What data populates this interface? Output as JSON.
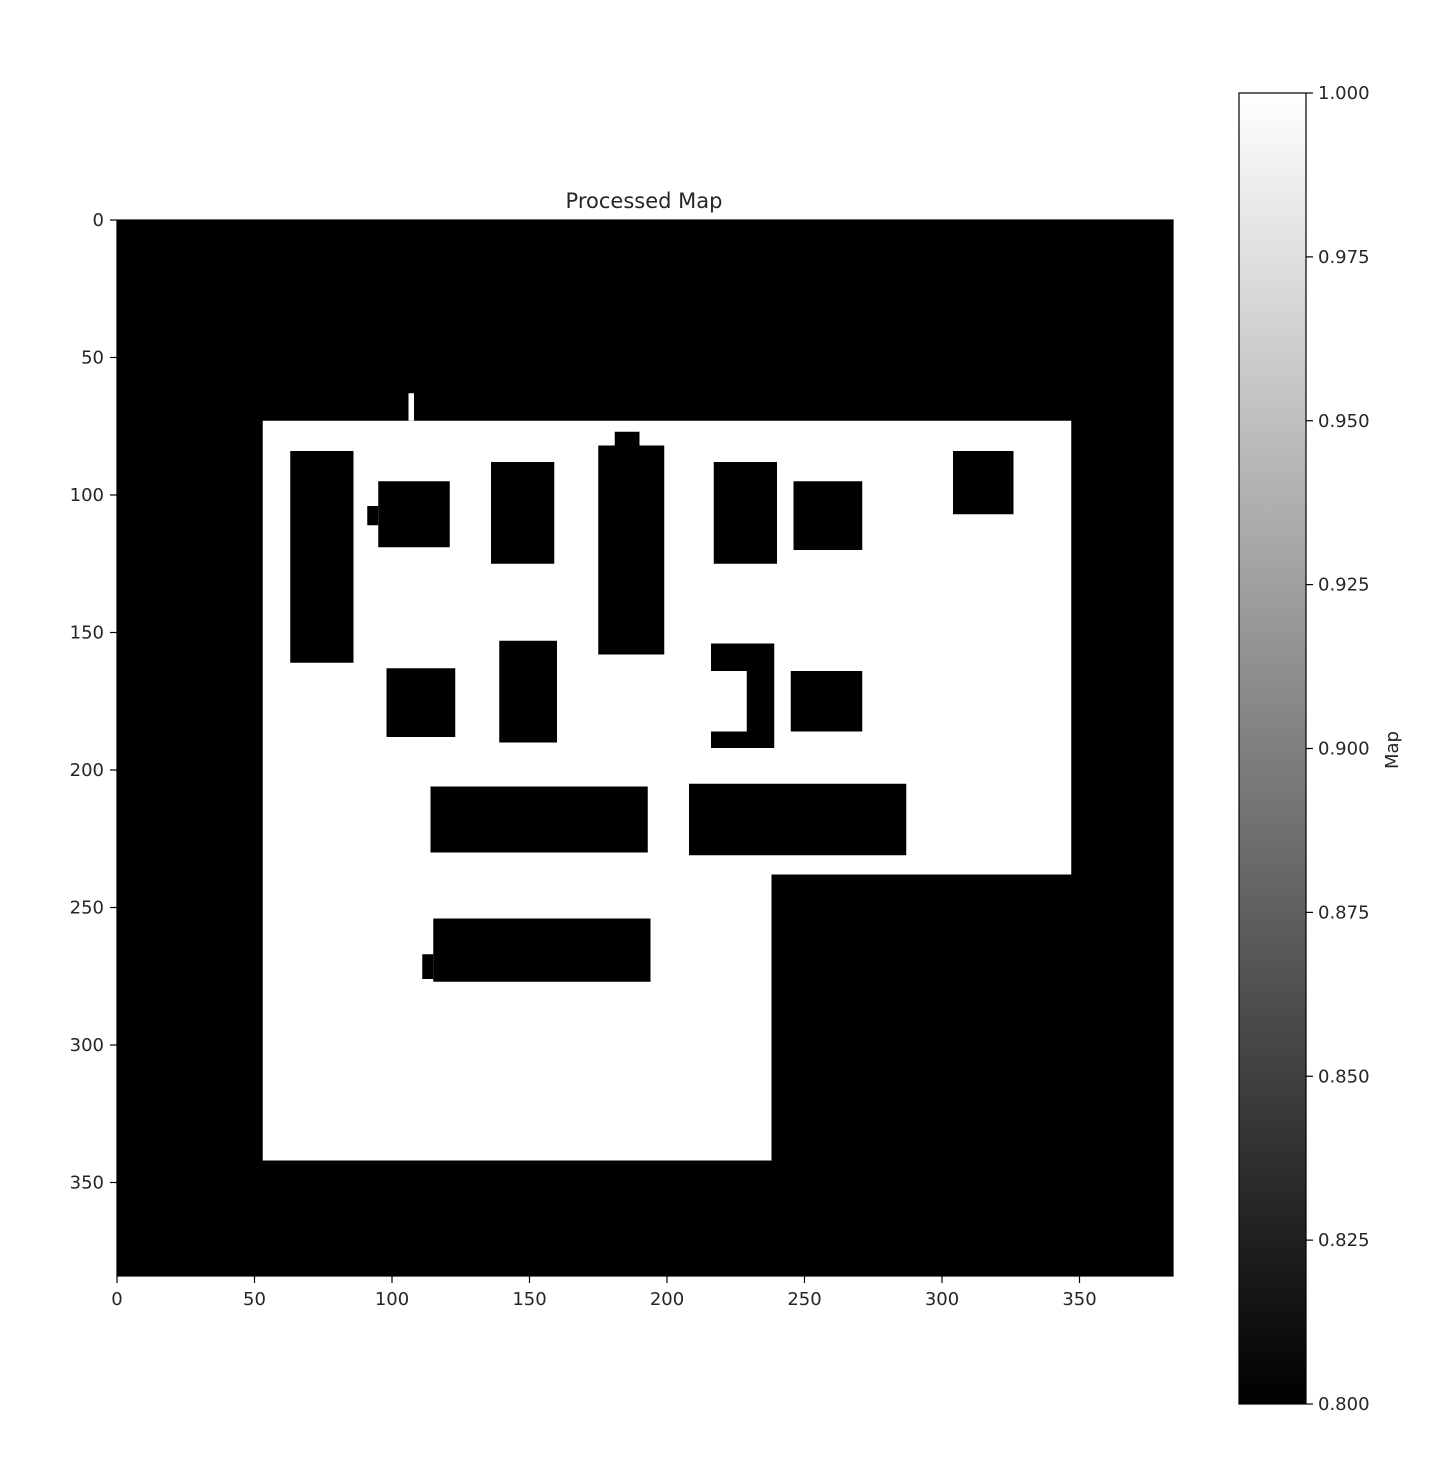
{
  "chart_data": {
    "type": "heatmap",
    "title": "Processed Map",
    "xlabel": "",
    "ylabel": "",
    "xlim": [
      0,
      384
    ],
    "ylim": [
      384,
      0
    ],
    "x_ticks": [
      0,
      50,
      100,
      150,
      200,
      250,
      300,
      350
    ],
    "y_ticks": [
      0,
      50,
      100,
      150,
      200,
      250,
      300,
      350
    ],
    "colormap": "gray",
    "colorbar": {
      "label": "Map",
      "min": 0.8,
      "max": 1.0,
      "ticks": [
        "0.800",
        "0.825",
        "0.850",
        "0.875",
        "0.900",
        "0.925",
        "0.950",
        "0.975",
        "1.000"
      ]
    },
    "free_space_value": 1.0,
    "obstacle_value": 0.8,
    "free_regions": [
      {
        "x": [
          53,
          347
        ],
        "y": [
          73,
          238
        ]
      },
      {
        "x": [
          53,
          238
        ],
        "y": [
          238,
          342
        ]
      },
      {
        "x": [
          106,
          108
        ],
        "y": [
          63,
          73
        ]
      }
    ],
    "obstacles": [
      {
        "x": [
          63,
          86
        ],
        "y": [
          84,
          161
        ]
      },
      {
        "x": [
          95,
          121
        ],
        "y": [
          95,
          119
        ]
      },
      {
        "x": [
          91,
          95
        ],
        "y": [
          104,
          111
        ]
      },
      {
        "x": [
          136,
          159
        ],
        "y": [
          88,
          125
        ]
      },
      {
        "x": [
          175,
          199
        ],
        "y": [
          82,
          158
        ]
      },
      {
        "x": [
          181,
          190
        ],
        "y": [
          77,
          82
        ]
      },
      {
        "x": [
          217,
          240
        ],
        "y": [
          88,
          125
        ]
      },
      {
        "x": [
          246,
          271
        ],
        "y": [
          95,
          120
        ]
      },
      {
        "x": [
          304,
          326
        ],
        "y": [
          84,
          107
        ]
      },
      {
        "x": [
          98,
          123
        ],
        "y": [
          163,
          188
        ]
      },
      {
        "x": [
          139,
          160
        ],
        "y": [
          153,
          190
        ]
      },
      {
        "x": [
          216,
          239
        ],
        "y": [
          154,
          164
        ]
      },
      {
        "x": [
          229,
          239
        ],
        "y": [
          164,
          186
        ]
      },
      {
        "x": [
          216,
          239
        ],
        "y": [
          186,
          192
        ]
      },
      {
        "x": [
          245,
          271
        ],
        "y": [
          164,
          186
        ]
      },
      {
        "x": [
          114,
          193
        ],
        "y": [
          206,
          230
        ]
      },
      {
        "x": [
          208,
          287
        ],
        "y": [
          205,
          231
        ]
      },
      {
        "x": [
          115,
          194
        ],
        "y": [
          254,
          277
        ]
      },
      {
        "x": [
          111,
          115
        ],
        "y": [
          267,
          276
        ]
      }
    ]
  }
}
